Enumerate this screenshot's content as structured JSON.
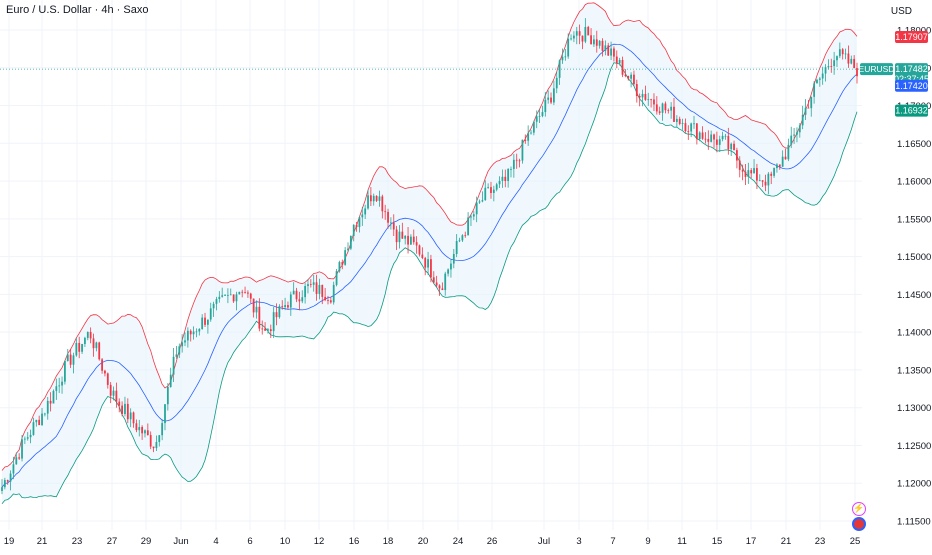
{
  "header": {
    "title": "Euro / U.S. Dollar · 4h · Saxo",
    "currency": "USD"
  },
  "chart_data": {
    "type": "line",
    "symbol": "EURUSD",
    "y_ticks": [
      "1.18000",
      "1.17500",
      "1.17000",
      "1.16500",
      "1.16000",
      "1.15500",
      "1.15000",
      "1.14500",
      "1.14000",
      "1.13500",
      "1.13000",
      "1.12500",
      "1.12000",
      "1.11500"
    ],
    "y_values": [
      1.18,
      1.175,
      1.17,
      1.165,
      1.16,
      1.155,
      1.15,
      1.145,
      1.14,
      1.135,
      1.13,
      1.125,
      1.12,
      1.115
    ],
    "x_ticks": [
      "19",
      "21",
      "23",
      "27",
      "29",
      "Jun",
      "4",
      "6",
      "10",
      "12",
      "16",
      "18",
      "20",
      "24",
      "26",
      "Jul",
      "3",
      "7",
      "9",
      "11",
      "15",
      "17",
      "21",
      "23",
      "25"
    ],
    "price_labels": {
      "upper_band": "1.17907",
      "last_price": "1.17482",
      "countdown": "02:37:45",
      "middle_band": "1.17420",
      "lower_band": "1.16932",
      "symbol_tag": "EURUSD"
    },
    "colors": {
      "up": "#26a69a",
      "down": "#f23645",
      "upper": "#f23645",
      "lower": "#089981",
      "basis": "#2962ff",
      "fill": "#e3f2fd"
    },
    "series": [
      {
        "name": "",
        "values": [
          1.1195,
          1.1255,
          1.13,
          1.136,
          1.14,
          1.132,
          1.128,
          1.125,
          1.138,
          1.141,
          1.144,
          1.146,
          1.14,
          1.144,
          1.146,
          1.145,
          1.154,
          1.159,
          1.153,
          1.151,
          1.146,
          1.153,
          1.158,
          1.16,
          1.166,
          1.171,
          1.18,
          1.179,
          1.176,
          1.172,
          1.17,
          1.168,
          1.166,
          1.165,
          1.161,
          1.16,
          1.165,
          1.172,
          1.177,
          1.1748
        ]
      }
    ],
    "candles_count": 300
  },
  "icons": {
    "alert": "lightning-icon",
    "news": "news-icon"
  }
}
